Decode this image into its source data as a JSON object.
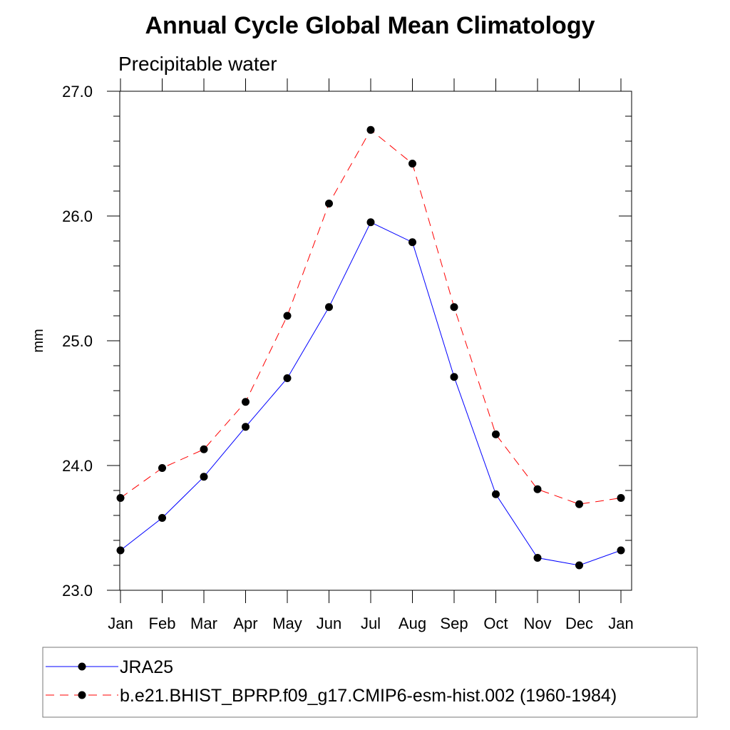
{
  "chart_data": {
    "type": "line",
    "title": "Annual Cycle Global Mean Climatology",
    "subtitle": "Precipitable water",
    "ylabel": "mm",
    "xlabel": "",
    "categories": [
      "Jan",
      "Feb",
      "Mar",
      "Apr",
      "May",
      "Jun",
      "Jul",
      "Aug",
      "Sep",
      "Oct",
      "Nov",
      "Dec",
      "Jan"
    ],
    "ylim": [
      23.0,
      27.0
    ],
    "yticks": [
      "23.0",
      "24.0",
      "25.0",
      "26.0",
      "27.0"
    ],
    "grid": false,
    "legend_position": "bottom",
    "series": [
      {
        "name": "JRA25",
        "color": "#0000ff",
        "dash": "solid",
        "marker": "circle",
        "values": [
          23.32,
          23.58,
          23.91,
          24.31,
          24.7,
          25.27,
          25.95,
          25.79,
          24.71,
          23.77,
          23.26,
          23.2,
          23.32
        ]
      },
      {
        "name": "b.e21.BHIST_BPRP.f09_g17.CMIP6-esm-hist.002 (1960-1984)",
        "color": "#ff0000",
        "dash": "dashed",
        "marker": "circle",
        "values": [
          23.74,
          23.98,
          24.13,
          24.51,
          25.2,
          26.1,
          26.69,
          26.42,
          25.27,
          24.25,
          23.81,
          23.69,
          23.74
        ]
      }
    ]
  }
}
